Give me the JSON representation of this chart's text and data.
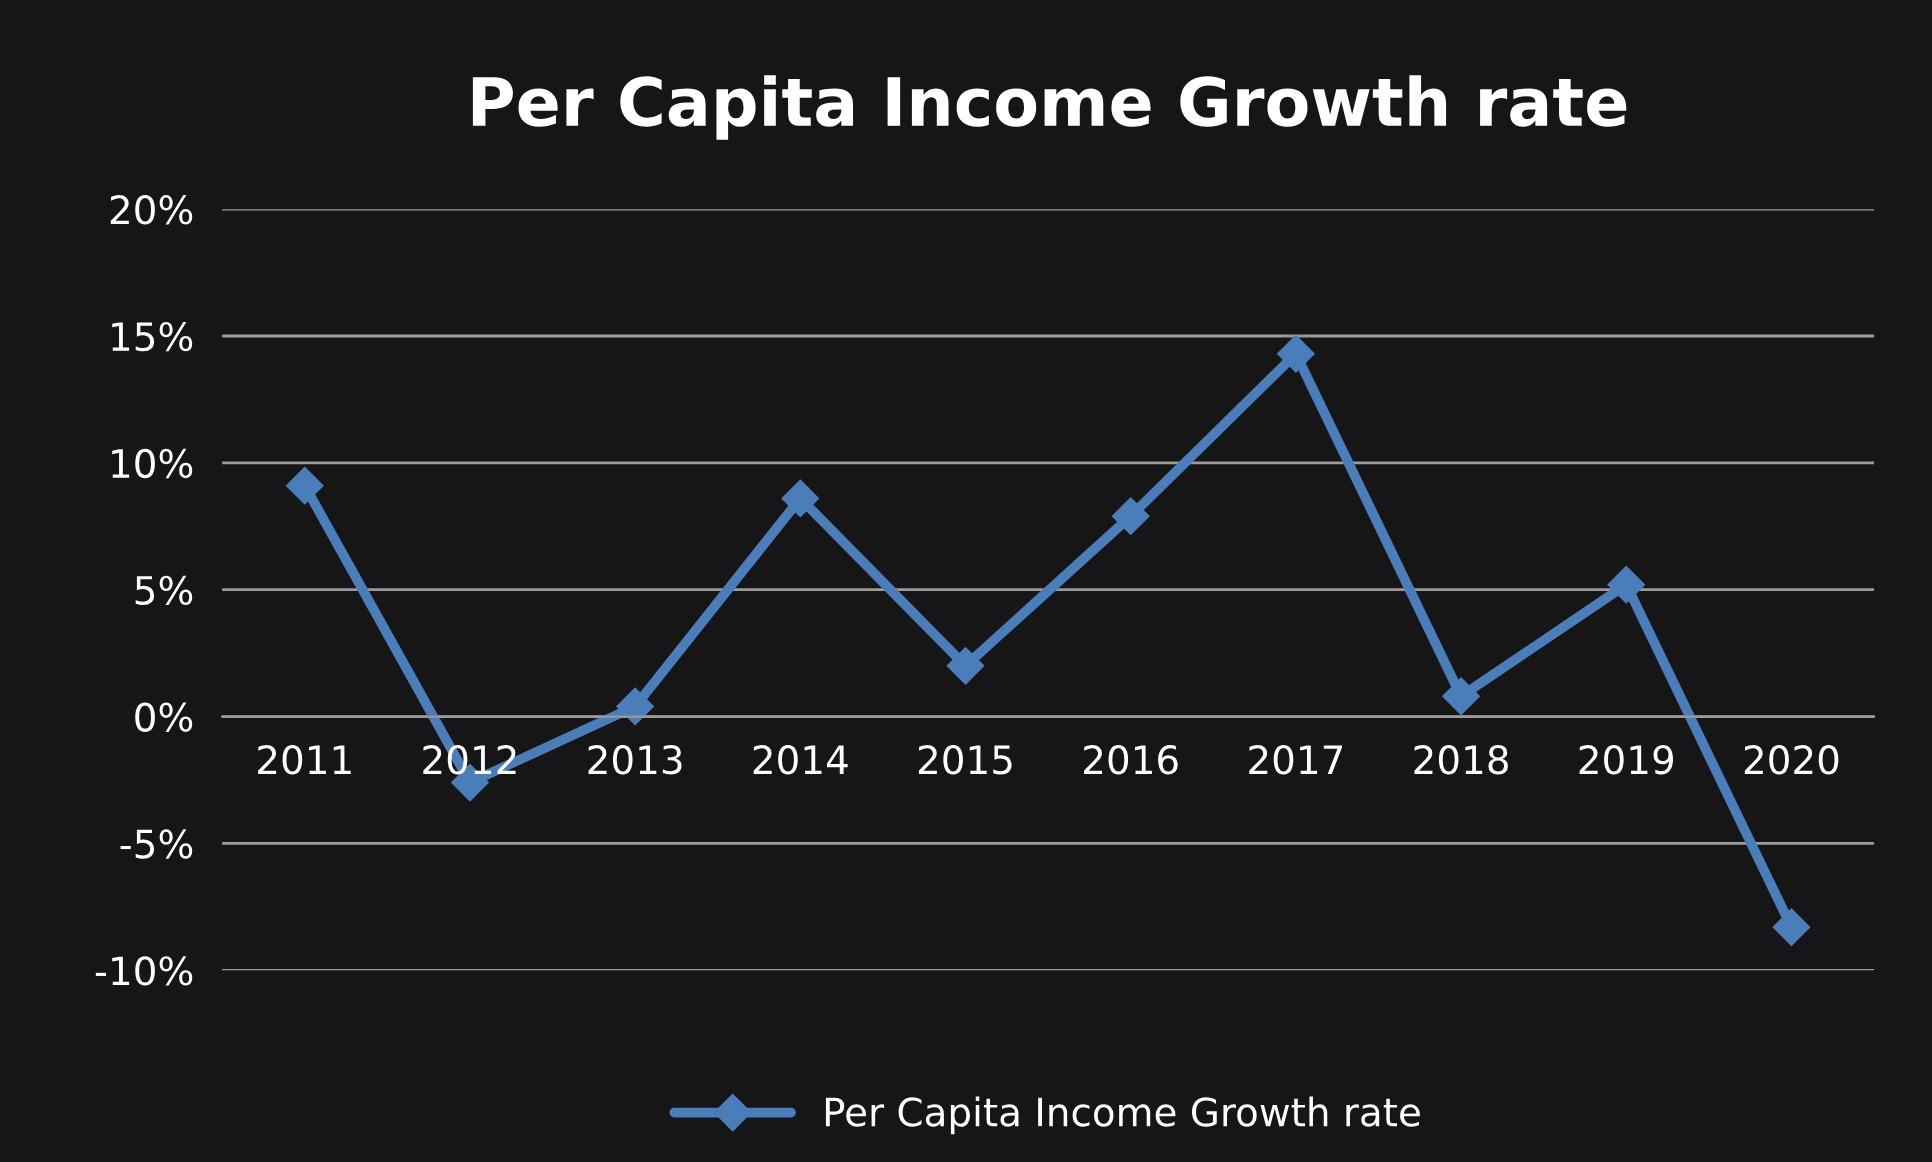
{
  "chart_data": {
    "type": "line",
    "title": "Per Capita Income Growth rate",
    "categories": [
      "2011",
      "2012",
      "2013",
      "2014",
      "2015",
      "2016",
      "2017",
      "2018",
      "2019",
      "2020"
    ],
    "series": [
      {
        "name": "Per Capita Income Growth rate",
        "color": "#4a7ebb",
        "values": [
          9.1,
          -2.6,
          0.4,
          8.6,
          2.0,
          7.9,
          14.3,
          0.8,
          5.2,
          -8.3
        ]
      }
    ],
    "ylim": [
      -10,
      20
    ],
    "yticks": [
      {
        "value": -10,
        "label": "-10%"
      },
      {
        "value": -5,
        "label": "-5%"
      },
      {
        "value": 0,
        "label": "0%"
      },
      {
        "value": 5,
        "label": "5%"
      },
      {
        "value": 10,
        "label": "10%"
      },
      {
        "value": 15,
        "label": "15%"
      },
      {
        "value": 20,
        "label": "20%"
      }
    ],
    "grid": "y",
    "legend": "bottom",
    "marker": "diamond",
    "line_style": "solid"
  }
}
